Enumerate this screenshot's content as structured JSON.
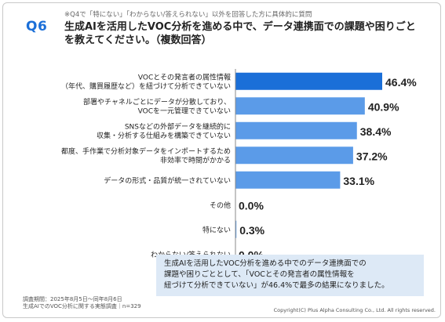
{
  "header": {
    "badge": "Q6",
    "prenote": "※Q4で「特にない」「わからない/答えられない」以外を回答した方に具体的に質問",
    "question": "生成AIを活用したVOC分析を進める中で、データ連携面での課題や困りごとを教えてください。（複数回答）"
  },
  "chart_data": {
    "type": "bar",
    "orientation": "horizontal",
    "categories": [
      [
        "VOCとその発言者の属性情報",
        "（年代、購買履歴など）を紐づけて分析できていない"
      ],
      [
        "部署やチャネルごとにデータが分散しており、",
        "VOCを一元管理できていない"
      ],
      [
        "SNSなどの外部データを継続的に",
        "収集・分析する仕組みを構築できていない"
      ],
      [
        "都度、手作業で分析対象データをインポートするため",
        "非効率で時間がかかる"
      ],
      [
        "データの形式・品質が統一されていない"
      ],
      [
        "その他"
      ],
      [
        "特にない"
      ],
      [
        "わからない/答えられない"
      ]
    ],
    "values": [
      46.4,
      40.9,
      38.4,
      37.2,
      33.1,
      0.0,
      0.3,
      0.0
    ],
    "labels": [
      "46.4%",
      "40.9%",
      "38.4%",
      "37.2%",
      "33.1%",
      "0.0%",
      "0.3%",
      "0.0%"
    ],
    "highlight_index": 0,
    "colors": {
      "highlight": "#1b6fd8",
      "default": "#5b9be8",
      "axis": "#888888"
    },
    "xlim": [
      0,
      60
    ]
  },
  "callout": {
    "lines": [
      "生成AIを活用したVOC分析を進める中でのデータ連携面での",
      "課題や困りごととして、「VOCとその発言者の属性情報を",
      "紐づけて分析できていない」が46.4%で最多の結果になりました。"
    ]
  },
  "footer": {
    "survey_period": "調査期間：2025年8月5日〜同年8月6日",
    "survey_name": "生成AIでのVOC分析に関する実態調査｜n=329",
    "copyright": "Copyright(C) Plus Alpha Consulting Co., Ltd. All rights reserved."
  }
}
